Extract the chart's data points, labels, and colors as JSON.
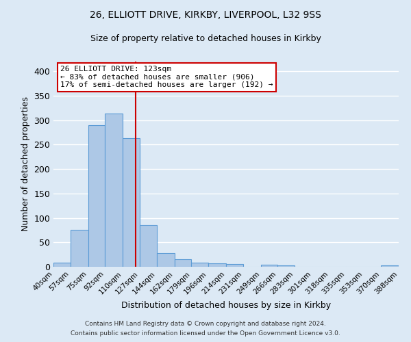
{
  "title1": "26, ELLIOTT DRIVE, KIRKBY, LIVERPOOL, L32 9SS",
  "title2": "Size of property relative to detached houses in Kirkby",
  "xlabel": "Distribution of detached houses by size in Kirkby",
  "ylabel": "Number of detached properties",
  "bin_edges": [
    40,
    57,
    75,
    92,
    110,
    127,
    144,
    162,
    179,
    196,
    214,
    231,
    249,
    266,
    283,
    301,
    318,
    335,
    353,
    370,
    388
  ],
  "bin_labels": [
    "40sqm",
    "57sqm",
    "75sqm",
    "92sqm",
    "110sqm",
    "127sqm",
    "144sqm",
    "162sqm",
    "179sqm",
    "196sqm",
    "214sqm",
    "231sqm",
    "249sqm",
    "266sqm",
    "283sqm",
    "301sqm",
    "318sqm",
    "335sqm",
    "353sqm",
    "370sqm",
    "388sqm"
  ],
  "bar_heights": [
    8,
    75,
    290,
    313,
    263,
    85,
    28,
    15,
    9,
    7,
    5,
    0,
    4,
    3,
    0,
    0,
    0,
    0,
    0,
    3
  ],
  "bar_color": "#adc8e6",
  "bar_edge_color": "#5b9bd5",
  "vline_x": 123,
  "vline_color": "#cc0000",
  "ylim": [
    0,
    420
  ],
  "yticks": [
    0,
    50,
    100,
    150,
    200,
    250,
    300,
    350,
    400
  ],
  "annotation_text": "26 ELLIOTT DRIVE: 123sqm\n← 83% of detached houses are smaller (906)\n17% of semi-detached houses are larger (192) →",
  "annotation_box_color": "#ffffff",
  "annotation_box_edge": "#cc0000",
  "footer1": "Contains HM Land Registry data © Crown copyright and database right 2024.",
  "footer2": "Contains public sector information licensed under the Open Government Licence v3.0.",
  "background_color": "#dce9f5",
  "grid_color": "#ffffff"
}
